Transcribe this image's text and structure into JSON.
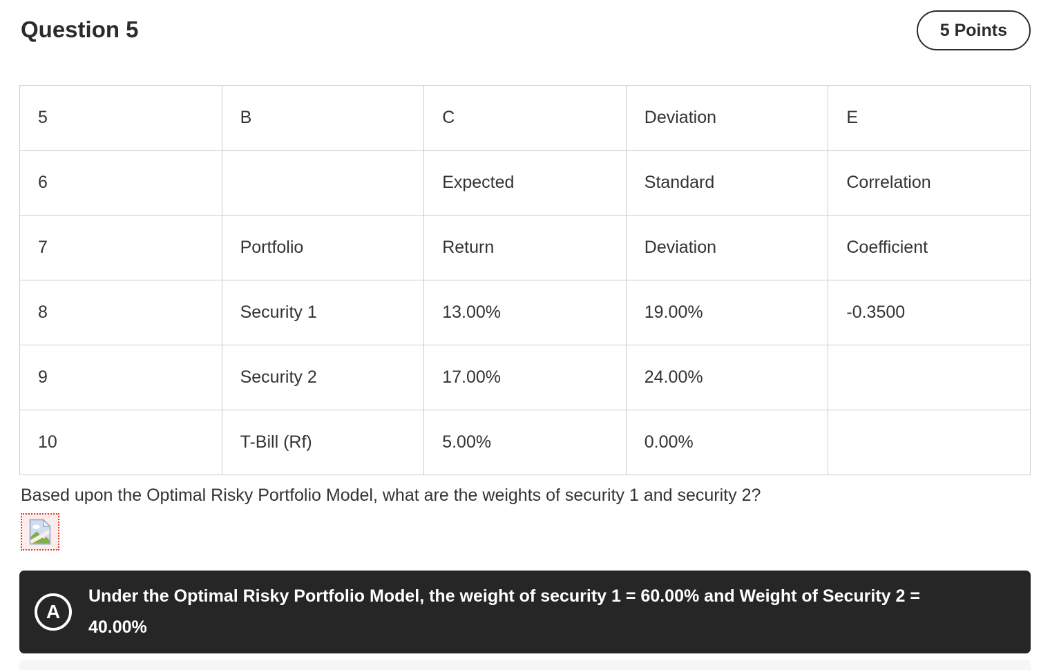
{
  "header": {
    "title": "Question 5",
    "points_label": "5 Points"
  },
  "table": {
    "rows": [
      [
        "5",
        "B",
        "C",
        "Deviation",
        "E"
      ],
      [
        "6",
        "",
        "Expected",
        "Standard",
        "Correlation"
      ],
      [
        "7",
        "Portfolio",
        "Return",
        "Deviation",
        "Coefficient"
      ],
      [
        "8",
        "Security 1",
        "13.00%",
        "19.00%",
        "-0.3500"
      ],
      [
        "9",
        "Security 2",
        "17.00%",
        "24.00%",
        ""
      ],
      [
        "10",
        "T-Bill (Rf)",
        "5.00%",
        "0.00%",
        ""
      ]
    ]
  },
  "question": {
    "text": "Based upon the Optimal Risky Portfolio Model, what are the weights of security 1 and security 2?"
  },
  "answer": {
    "badge_label": "A",
    "text": "Under the Optimal Risky Portfolio Model, the weight of security 1 = 60.00% and Weight of Security 2 = 40.00%"
  },
  "icons": {
    "broken_image": "broken-image-icon"
  },
  "colors": {
    "text_dark": "#2b2b2b",
    "table_border": "#cccccc",
    "answer_bg": "#262626",
    "answer_text": "#ffffff",
    "broken_border_red": "#e0392e",
    "broken_bg_pink": "#fcecea",
    "next_strip_gray": "#f6f6f6"
  }
}
